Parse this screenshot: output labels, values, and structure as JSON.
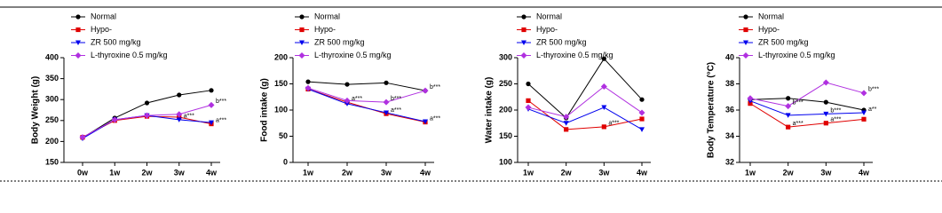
{
  "chart_data": [
    {
      "type": "line",
      "y_label": "Body Weight (g)",
      "categories": [
        "0w",
        "1w",
        "2w",
        "3w",
        "4w"
      ],
      "ylim": [
        150,
        400
      ],
      "yticks": [
        150,
        200,
        250,
        300,
        350,
        400
      ],
      "series": [
        {
          "name": "Normal",
          "color": "#000000",
          "marker": "circle",
          "values": [
            209,
            256,
            292,
            311,
            322
          ],
          "annotations": [
            null,
            null,
            null,
            null,
            null
          ]
        },
        {
          "name": "Hypo-",
          "color": "#e00000",
          "marker": "square",
          "values": [
            210,
            250,
            260,
            258,
            242
          ],
          "annotations": [
            null,
            null,
            null,
            null,
            "a***"
          ]
        },
        {
          "name": "ZR 500 mg/kg",
          "color": "#0000ee",
          "marker": "triangle",
          "values": [
            207,
            252,
            262,
            252,
            245
          ],
          "annotations": [
            null,
            null,
            null,
            "a***",
            null
          ]
        },
        {
          "name": "L-thyroxine 0.5 mg/kg",
          "color": "#b030e0",
          "marker": "diamond",
          "values": [
            210,
            252,
            262,
            265,
            287
          ],
          "annotations": [
            null,
            null,
            null,
            null,
            "b***"
          ]
        }
      ]
    },
    {
      "type": "line",
      "y_label": "Food intake (g)",
      "categories": [
        "1w",
        "2w",
        "3w",
        "4w"
      ],
      "ylim": [
        0,
        200
      ],
      "yticks": [
        0,
        50,
        100,
        150,
        200
      ],
      "series": [
        {
          "name": "Normal",
          "color": "#000000",
          "marker": "circle",
          "values": [
            154,
            149,
            152,
            137
          ],
          "annotations": [
            null,
            null,
            null,
            null
          ]
        },
        {
          "name": "Hypo-",
          "color": "#e00000",
          "marker": "square",
          "values": [
            140,
            115,
            93,
            77
          ],
          "annotations": [
            null,
            "a***",
            "a***",
            "a***"
          ]
        },
        {
          "name": "ZR 500 mg/kg",
          "color": "#0000ee",
          "marker": "triangle",
          "values": [
            140,
            112,
            95,
            78
          ],
          "annotations": [
            null,
            null,
            null,
            null
          ]
        },
        {
          "name": "L-thyroxine 0.5 mg/kg",
          "color": "#b030e0",
          "marker": "diamond",
          "values": [
            142,
            118,
            115,
            137
          ],
          "annotations": [
            null,
            null,
            "b***",
            "b***"
          ]
        }
      ]
    },
    {
      "type": "line",
      "y_label": "Water intake (g)",
      "categories": [
        "1w",
        "2w",
        "3w",
        "4w"
      ],
      "ylim": [
        100,
        300
      ],
      "yticks": [
        100,
        150,
        200,
        250,
        300
      ],
      "series": [
        {
          "name": "Normal",
          "color": "#000000",
          "marker": "circle",
          "values": [
            250,
            185,
            298,
            220
          ],
          "annotations": [
            null,
            null,
            null,
            null
          ]
        },
        {
          "name": "Hypo-",
          "color": "#e00000",
          "marker": "square",
          "values": [
            218,
            163,
            168,
            183
          ],
          "annotations": [
            null,
            null,
            "a***",
            null
          ]
        },
        {
          "name": "ZR 500 mg/kg",
          "color": "#0000ee",
          "marker": "triangle",
          "values": [
            202,
            175,
            205,
            163
          ],
          "annotations": [
            null,
            null,
            null,
            null
          ]
        },
        {
          "name": "L-thyroxine 0.5 mg/kg",
          "color": "#b030e0",
          "marker": "diamond",
          "values": [
            205,
            187,
            245,
            195
          ],
          "annotations": [
            null,
            null,
            null,
            null
          ]
        }
      ]
    },
    {
      "type": "line",
      "y_label": "Body Temperature (°C)",
      "categories": [
        "1w",
        "2w",
        "3w",
        "4w"
      ],
      "ylim": [
        32,
        40
      ],
      "yticks": [
        32,
        34,
        36,
        38,
        40
      ],
      "series": [
        {
          "name": "Normal",
          "color": "#000000",
          "marker": "circle",
          "values": [
            36.8,
            36.9,
            36.6,
            36.0
          ],
          "annotations": [
            null,
            null,
            null,
            null
          ]
        },
        {
          "name": "Hypo-",
          "color": "#e00000",
          "marker": "square",
          "values": [
            36.5,
            34.7,
            35.0,
            35.3
          ],
          "annotations": [
            null,
            "a***",
            "a***",
            null
          ]
        },
        {
          "name": "ZR 500 mg/kg",
          "color": "#0000ee",
          "marker": "triangle",
          "values": [
            36.7,
            35.6,
            35.7,
            35.8
          ],
          "annotations": [
            null,
            null,
            "b***",
            "a**"
          ]
        },
        {
          "name": "L-thyroxine 0.5 mg/kg",
          "color": "#b030e0",
          "marker": "diamond",
          "values": [
            36.9,
            36.3,
            38.1,
            37.3
          ],
          "annotations": [
            null,
            "b***",
            null,
            "b***"
          ]
        }
      ]
    }
  ]
}
